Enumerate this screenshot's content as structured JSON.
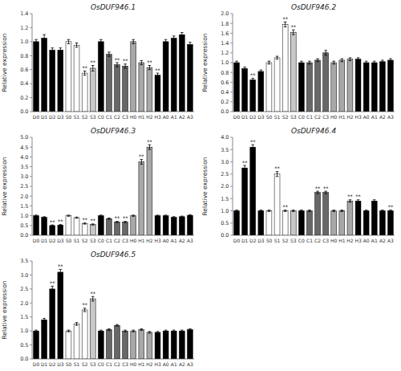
{
  "chart_data": [
    {
      "type": "bar",
      "title": "OsDUF946.1",
      "ylabel": "Relative expression",
      "categories": [
        "D0",
        "D1",
        "D2",
        "D3",
        "S0",
        "S1",
        "S2",
        "S3",
        "C0",
        "C1",
        "C2",
        "C3",
        "H0",
        "H1",
        "H2",
        "H3",
        "A0",
        "A1",
        "A2",
        "A3"
      ],
      "values": [
        1.0,
        1.05,
        0.88,
        0.88,
        1.0,
        0.95,
        0.55,
        0.62,
        1.0,
        0.82,
        0.67,
        0.65,
        1.0,
        0.7,
        0.63,
        0.52,
        1.0,
        1.05,
        1.1,
        0.96
      ],
      "errors": [
        0.03,
        0.05,
        0.03,
        0.03,
        0.03,
        0.03,
        0.03,
        0.04,
        0.03,
        0.03,
        0.03,
        0.03,
        0.03,
        0.03,
        0.03,
        0.03,
        0.03,
        0.03,
        0.03,
        0.03
      ],
      "colors": [
        "#000000",
        "#000000",
        "#000000",
        "#000000",
        "#ffffff",
        "#ffffff",
        "#ffffff",
        "#c8c8c8",
        "#000000",
        "#686868",
        "#686868",
        "#686868",
        "#a8a8a8",
        "#a8a8a8",
        "#a8a8a8",
        "#000000",
        "#000000",
        "#000000",
        "#000000",
        "#000000"
      ],
      "ylim": [
        0,
        1.4
      ],
      "yticks": [
        {
          "value": 0,
          "label": "0.0"
        },
        0.2,
        0.4,
        0.6,
        0.8,
        {
          "value": 1.0,
          "label": "1.0"
        },
        1.2,
        1.4
      ],
      "annotations": [
        {
          "category": "S2",
          "text": "**"
        },
        {
          "category": "S3",
          "text": "**"
        },
        {
          "category": "C2",
          "text": "**"
        },
        {
          "category": "C3",
          "text": "**"
        },
        {
          "category": "H2",
          "text": "**"
        },
        {
          "category": "H3",
          "text": "**"
        }
      ]
    },
    {
      "type": "bar",
      "title": "OsDUF946.2",
      "ylabel": "Relative expression",
      "categories": [
        "D0",
        "D1",
        "D2",
        "D3",
        "S0",
        "S1",
        "S2",
        "S3",
        "C0",
        "C1",
        "C2",
        "C3",
        "H0",
        "H1",
        "H2",
        "H3",
        "A0",
        "A1",
        "A2",
        "A3"
      ],
      "values": [
        1.0,
        0.88,
        0.65,
        0.82,
        1.0,
        1.1,
        1.78,
        1.62,
        1.0,
        1.0,
        1.05,
        1.2,
        1.0,
        1.05,
        1.07,
        1.07,
        1.0,
        1.0,
        1.02,
        1.05
      ],
      "errors": [
        0.03,
        0.03,
        0.03,
        0.03,
        0.03,
        0.03,
        0.05,
        0.05,
        0.03,
        0.03,
        0.03,
        0.05,
        0.03,
        0.03,
        0.03,
        0.03,
        0.03,
        0.03,
        0.03,
        0.03
      ],
      "colors": [
        "#000000",
        "#000000",
        "#000000",
        "#000000",
        "#ffffff",
        "#ffffff",
        "#ffffff",
        "#c8c8c8",
        "#000000",
        "#686868",
        "#686868",
        "#686868",
        "#a8a8a8",
        "#a8a8a8",
        "#a8a8a8",
        "#000000",
        "#000000",
        "#000000",
        "#000000",
        "#000000"
      ],
      "ylim": [
        0,
        2.0
      ],
      "yticks": [
        {
          "value": 0,
          "label": "0.0"
        },
        0.2,
        0.4,
        0.6,
        0.8,
        {
          "value": 1.0,
          "label": "1.0"
        },
        1.2,
        1.4,
        1.6,
        1.8,
        {
          "value": 2.0,
          "label": "2.0"
        }
      ],
      "annotations": [
        {
          "category": "D2",
          "text": "**"
        },
        {
          "category": "S2",
          "text": "**"
        },
        {
          "category": "S3",
          "text": "**"
        }
      ]
    },
    {
      "type": "bar",
      "title": "OsDUF946.3",
      "ylabel": "Relative expression",
      "categories": [
        "D0",
        "D1",
        "D2",
        "D3",
        "S0",
        "S1",
        "S2",
        "S3",
        "C0",
        "C1",
        "C2",
        "C3",
        "H0",
        "H1",
        "H2",
        "H3",
        "A0",
        "A1",
        "A2",
        "A3"
      ],
      "values": [
        1.0,
        0.92,
        0.5,
        0.52,
        1.0,
        0.9,
        0.6,
        0.55,
        1.0,
        0.85,
        0.68,
        0.68,
        1.0,
        3.75,
        4.5,
        1.0,
        1.0,
        0.92,
        0.95,
        1.02
      ],
      "errors": [
        0.03,
        0.03,
        0.03,
        0.03,
        0.03,
        0.03,
        0.03,
        0.03,
        0.03,
        0.03,
        0.03,
        0.03,
        0.03,
        0.12,
        0.12,
        0.03,
        0.03,
        0.03,
        0.03,
        0.03
      ],
      "colors": [
        "#000000",
        "#000000",
        "#000000",
        "#000000",
        "#ffffff",
        "#ffffff",
        "#ffffff",
        "#c8c8c8",
        "#000000",
        "#686868",
        "#686868",
        "#686868",
        "#a8a8a8",
        "#a8a8a8",
        "#a8a8a8",
        "#000000",
        "#000000",
        "#000000",
        "#000000",
        "#000000"
      ],
      "ylim": [
        0,
        5.0
      ],
      "yticks": [
        {
          "value": 0,
          "label": "0.0"
        },
        0.5,
        {
          "value": 1.0,
          "label": "1.0"
        },
        1.5,
        {
          "value": 2.0,
          "label": "2.0"
        },
        2.5,
        {
          "value": 3.0,
          "label": "3.0"
        },
        3.5,
        {
          "value": 4.0,
          "label": "4.0"
        },
        4.5,
        {
          "value": 5.0,
          "label": "5.0"
        }
      ],
      "annotations": [
        {
          "category": "D2",
          "text": "**"
        },
        {
          "category": "D3",
          "text": "**"
        },
        {
          "category": "S2",
          "text": "**"
        },
        {
          "category": "S3",
          "text": "**"
        },
        {
          "category": "C2",
          "text": "**"
        },
        {
          "category": "C3",
          "text": "**"
        },
        {
          "category": "H1",
          "text": "**"
        },
        {
          "category": "H2",
          "text": "**"
        }
      ]
    },
    {
      "type": "bar",
      "title": "OsDUF946.4",
      "ylabel": "Relative expression",
      "categories": [
        "D0",
        "D1",
        "D2",
        "D3",
        "S0",
        "S1",
        "S2",
        "S3",
        "C0",
        "C1",
        "C2",
        "C3",
        "H0",
        "H1",
        "H2",
        "H3",
        "A0",
        "A1",
        "A2",
        "A3"
      ],
      "values": [
        1.0,
        2.75,
        3.6,
        1.0,
        1.0,
        2.5,
        1.0,
        1.0,
        1.0,
        1.0,
        1.75,
        1.75,
        1.0,
        1.0,
        1.4,
        1.4,
        1.0,
        1.4,
        1.0,
        1.0
      ],
      "errors": [
        0.03,
        0.1,
        0.1,
        0.03,
        0.03,
        0.1,
        0.03,
        0.03,
        0.03,
        0.03,
        0.05,
        0.05,
        0.03,
        0.03,
        0.05,
        0.05,
        0.03,
        0.05,
        0.03,
        0.03
      ],
      "colors": [
        "#000000",
        "#000000",
        "#000000",
        "#000000",
        "#ffffff",
        "#ffffff",
        "#ffffff",
        "#c8c8c8",
        "#000000",
        "#686868",
        "#686868",
        "#686868",
        "#a8a8a8",
        "#a8a8a8",
        "#a8a8a8",
        "#000000",
        "#000000",
        "#000000",
        "#000000",
        "#000000"
      ],
      "ylim": [
        0,
        4.0
      ],
      "yticks": [
        {
          "value": 0,
          "label": "0.0"
        },
        0.5,
        {
          "value": 1.0,
          "label": "1.0"
        },
        1.5,
        {
          "value": 2.0,
          "label": "2.0"
        },
        2.5,
        {
          "value": 3.0,
          "label": "3.0"
        },
        3.5,
        {
          "value": 4.0,
          "label": "4.0"
        }
      ],
      "annotations": [
        {
          "category": "D1",
          "text": "**"
        },
        {
          "category": "D2",
          "text": "**"
        },
        {
          "category": "S1",
          "text": "**"
        },
        {
          "category": "S2",
          "text": "**"
        },
        {
          "category": "C2",
          "text": "**"
        },
        {
          "category": "C3",
          "text": "**"
        },
        {
          "category": "H2",
          "text": "**"
        },
        {
          "category": "H3",
          "text": "**"
        },
        {
          "category": "A3",
          "text": "**"
        }
      ]
    },
    {
      "type": "bar",
      "title": "OsDUF946.5",
      "ylabel": "Relative expression",
      "categories": [
        "D0",
        "D1",
        "D2",
        "D3",
        "S0",
        "S1",
        "S2",
        "S3",
        "C0",
        "C1",
        "C2",
        "C3",
        "H0",
        "H1",
        "H2",
        "H3",
        "A0",
        "A1",
        "A2",
        "A3"
      ],
      "values": [
        1.0,
        1.4,
        2.5,
        3.1,
        1.0,
        1.25,
        1.75,
        2.15,
        1.0,
        1.05,
        1.2,
        1.0,
        1.0,
        1.05,
        0.95,
        0.95,
        1.0,
        1.0,
        1.0,
        1.05
      ],
      "errors": [
        0.03,
        0.05,
        0.1,
        0.1,
        0.03,
        0.05,
        0.06,
        0.08,
        0.03,
        0.03,
        0.03,
        0.03,
        0.03,
        0.03,
        0.03,
        0.03,
        0.03,
        0.03,
        0.03,
        0.03
      ],
      "colors": [
        "#000000",
        "#000000",
        "#000000",
        "#000000",
        "#ffffff",
        "#ffffff",
        "#ffffff",
        "#c8c8c8",
        "#000000",
        "#686868",
        "#686868",
        "#686868",
        "#a8a8a8",
        "#a8a8a8",
        "#a8a8a8",
        "#000000",
        "#000000",
        "#000000",
        "#000000",
        "#000000"
      ],
      "ylim": [
        0,
        3.5
      ],
      "yticks": [
        {
          "value": 0,
          "label": "0.0"
        },
        0.5,
        {
          "value": 1.0,
          "label": "1.0"
        },
        1.5,
        {
          "value": 2.0,
          "label": "2.0"
        },
        2.5,
        {
          "value": 3.0,
          "label": "3.0"
        },
        3.5
      ],
      "annotations": [
        {
          "category": "D2",
          "text": "**"
        },
        {
          "category": "D3",
          "text": "**"
        },
        {
          "category": "S2",
          "text": "**"
        },
        {
          "category": "S3",
          "text": "**"
        }
      ]
    }
  ]
}
